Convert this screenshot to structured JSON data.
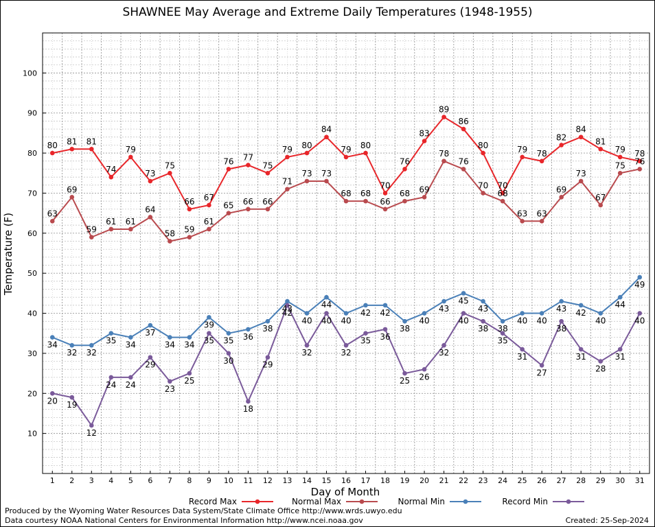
{
  "chart_data": {
    "type": "line",
    "title": "SHAWNEE May Average and Extreme Daily Temperatures (1948-1955)",
    "xlabel": "Day of Month",
    "ylabel": "Temperature (F)",
    "x": [
      1,
      2,
      3,
      4,
      5,
      6,
      7,
      8,
      9,
      10,
      11,
      12,
      13,
      14,
      15,
      16,
      17,
      18,
      19,
      20,
      21,
      22,
      23,
      24,
      25,
      26,
      27,
      28,
      29,
      30,
      31
    ],
    "xlim": [
      0.5,
      31.5
    ],
    "ylim": [
      0,
      110
    ],
    "y_ticks": [
      10,
      20,
      30,
      40,
      50,
      60,
      70,
      80,
      90,
      100
    ],
    "grid": true,
    "legend_position": "bottom",
    "series": [
      {
        "name": "Record Max",
        "color": "#e8262a",
        "label_pos": "above",
        "values": [
          80,
          81,
          81,
          74,
          79,
          73,
          75,
          66,
          67,
          76,
          77,
          75,
          79,
          80,
          84,
          79,
          80,
          70,
          76,
          83,
          89,
          86,
          80,
          70,
          79,
          78,
          82,
          84,
          81,
          79,
          78
        ]
      },
      {
        "name": "Normal Max",
        "color": "#b94a4e",
        "label_pos": "above",
        "values": [
          63,
          69,
          59,
          61,
          61,
          64,
          58,
          59,
          61,
          65,
          66,
          66,
          71,
          73,
          73,
          68,
          68,
          66,
          68,
          69,
          78,
          76,
          70,
          68,
          63,
          63,
          69,
          73,
          67,
          75,
          76
        ]
      },
      {
        "name": "Normal Min",
        "color": "#4a80b8",
        "label_pos": "below",
        "values": [
          34,
          32,
          32,
          35,
          34,
          37,
          34,
          34,
          39,
          35,
          36,
          38,
          43,
          40,
          44,
          40,
          42,
          42,
          38,
          40,
          43,
          45,
          43,
          38,
          40,
          40,
          43,
          42,
          40,
          44,
          49
        ]
      },
      {
        "name": "Record Min",
        "color": "#7a5a9a",
        "label_pos": "below",
        "values": [
          20,
          19,
          12,
          24,
          24,
          29,
          23,
          25,
          35,
          30,
          18,
          29,
          42,
          32,
          40,
          32,
          35,
          36,
          25,
          26,
          32,
          40,
          38,
          35,
          31,
          27,
          38,
          31,
          28,
          31,
          40
        ]
      }
    ]
  },
  "footer": {
    "produced_by": "Produced by the Wyoming Water Resources Data System/State Climate Office http://www.wrds.uwyo.edu",
    "courtesy": "Data courtesy NOAA National Centers for Environmental Information http://www.ncei.noaa.gov",
    "created": "Created:  25-Sep-2024"
  }
}
